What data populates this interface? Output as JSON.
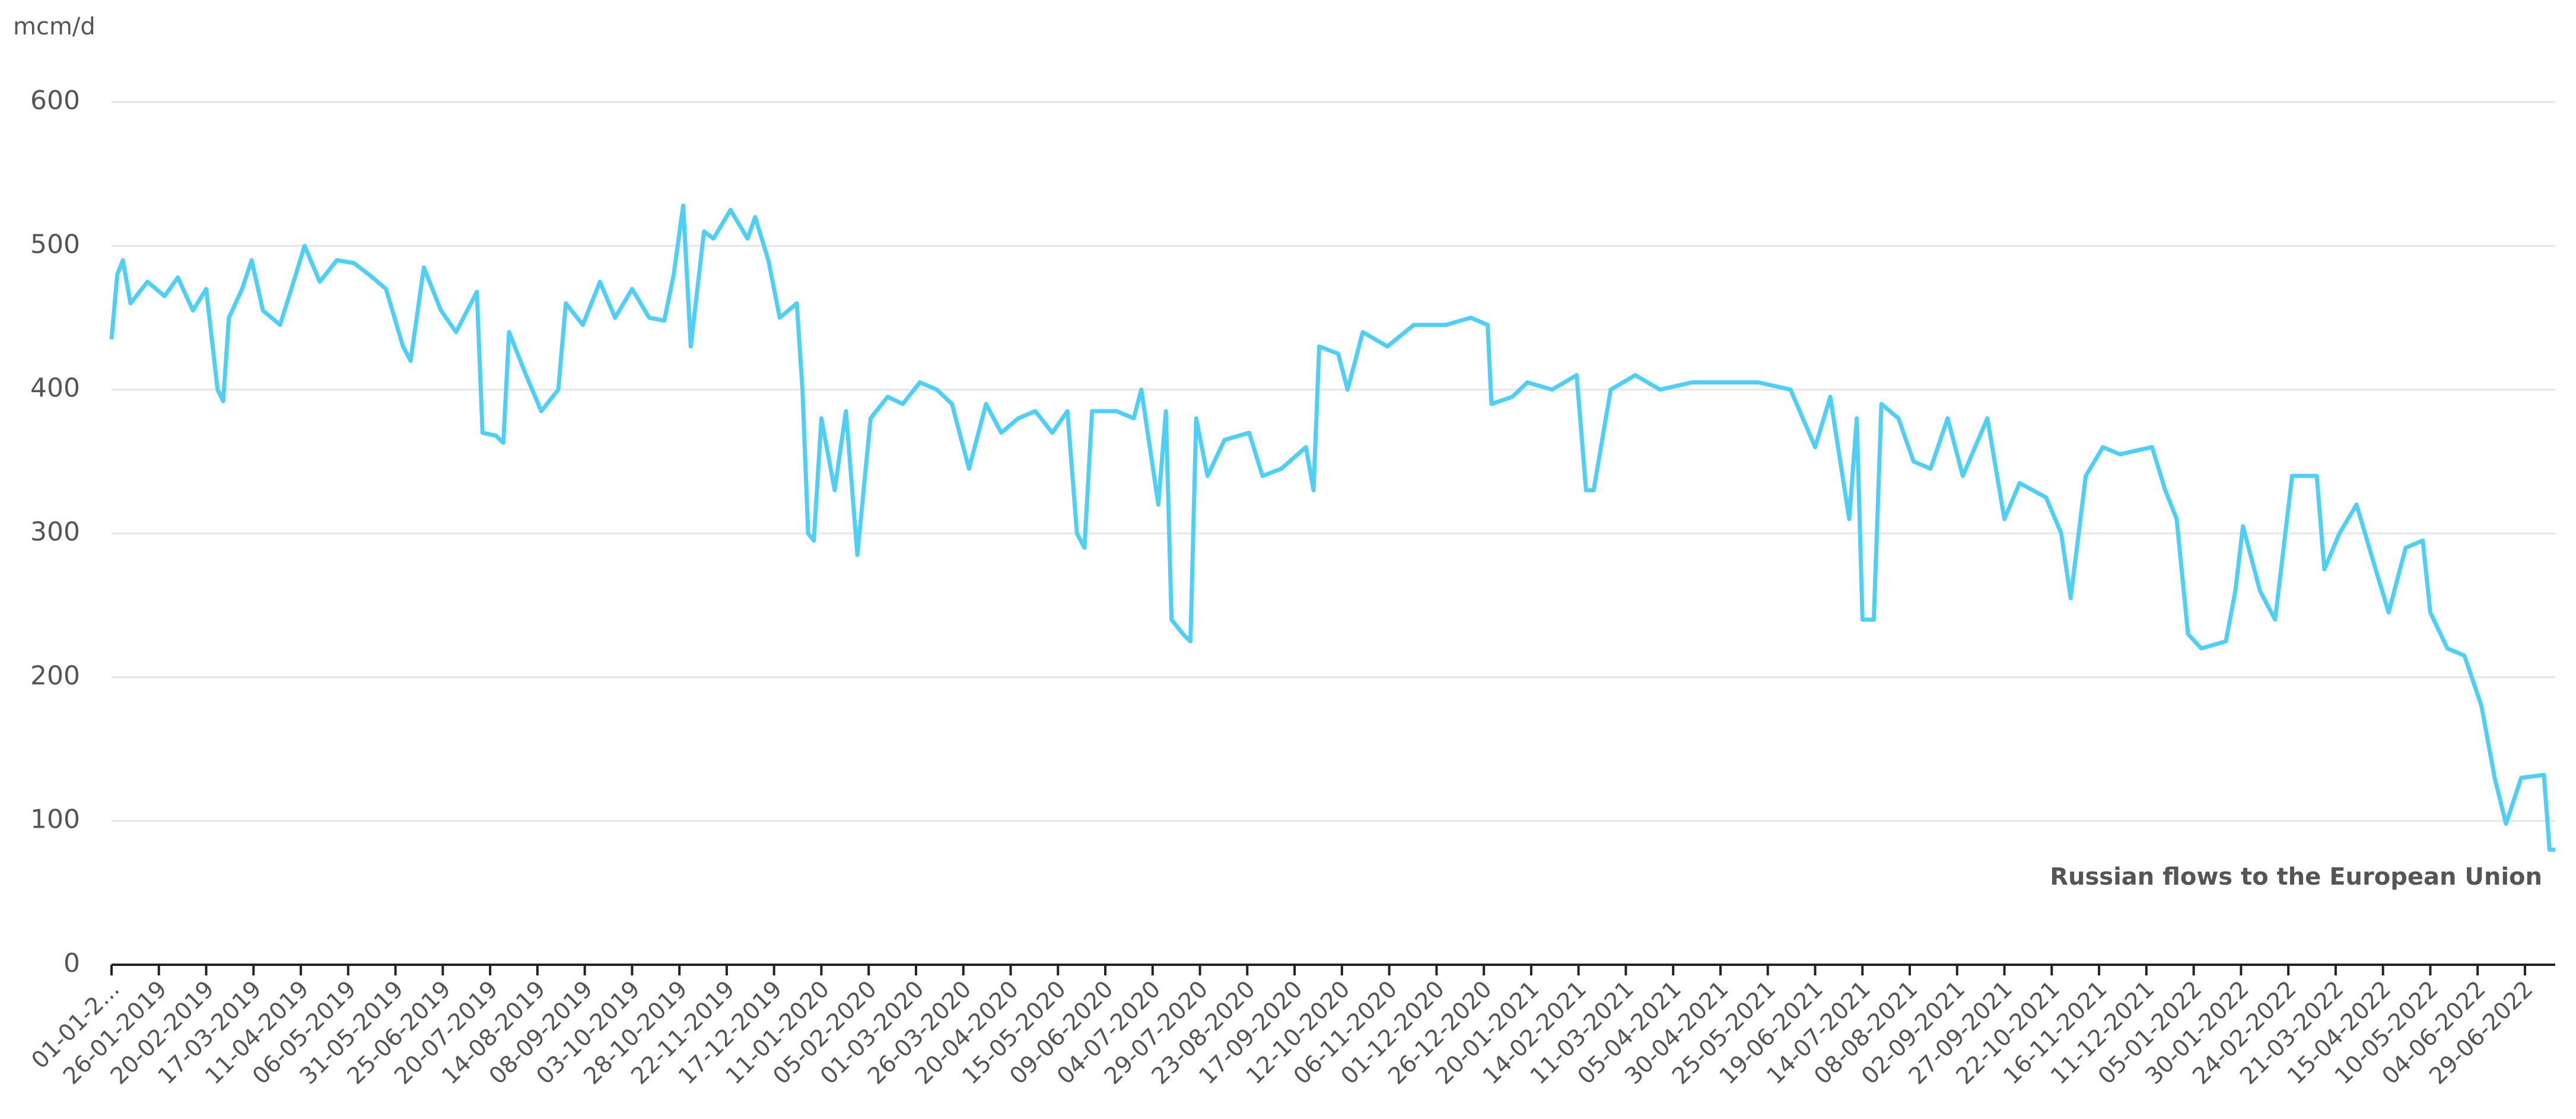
{
  "chart_data": {
    "type": "line",
    "y_label": "mcm/d",
    "x": [
      "01-01-2019",
      "04-01-2019",
      "07-01-2019",
      "11-01-2019",
      "20-01-2019",
      "29-01-2019",
      "05-02-2019",
      "13-02-2019",
      "20-02-2019",
      "26-02-2019",
      "01-03-2019",
      "04-03-2019",
      "11-03-2019",
      "16-03-2019",
      "22-03-2019",
      "31-03-2019",
      "06-04-2019",
      "13-04-2019",
      "21-04-2019",
      "30-04-2019",
      "09-05-2019",
      "17-05-2019",
      "26-05-2019",
      "04-06-2019",
      "08-06-2019",
      "15-06-2019",
      "24-06-2019",
      "02-07-2019",
      "13-07-2019",
      "16-07-2019",
      "23-07-2019",
      "27-07-2019",
      "30-07-2019",
      "08-08-2019",
      "16-08-2019",
      "25-08-2019",
      "29-08-2019",
      "07-09-2019",
      "16-09-2019",
      "24-09-2019",
      "03-10-2019",
      "12-10-2019",
      "20-10-2019",
      "25-10-2019",
      "30-10-2019",
      "03-11-2019",
      "10-11-2019",
      "15-11-2019",
      "24-11-2019",
      "03-12-2019",
      "07-12-2019",
      "14-12-2019",
      "20-12-2019",
      "29-12-2019",
      "01-01-2020",
      "04-01-2020",
      "07-01-2020",
      "11-01-2020",
      "18-01-2020",
      "24-01-2020",
      "30-01-2020",
      "06-02-2020",
      "15-02-2020",
      "23-02-2020",
      "03-03-2020",
      "12-03-2020",
      "20-03-2020",
      "29-03-2020",
      "07-04-2020",
      "15-04-2020",
      "24-04-2020",
      "03-05-2020",
      "12-05-2020",
      "20-05-2020",
      "25-05-2020",
      "29-05-2020",
      "02-06-2020",
      "15-06-2020",
      "24-06-2020",
      "28-06-2020",
      "07-07-2020",
      "11-07-2020",
      "14-07-2020",
      "20-07-2020",
      "24-07-2020",
      "27-07-2020",
      "02-08-2020",
      "11-08-2020",
      "24-08-2020",
      "31-08-2020",
      "10-09-2020",
      "23-09-2020",
      "27-09-2020",
      "30-09-2020",
      "10-10-2020",
      "15-10-2020",
      "23-10-2020",
      "05-11-2020",
      "19-11-2020",
      "06-12-2020",
      "19-12-2020",
      "28-12-2020",
      "30-12-2020",
      "10-01-2021",
      "18-01-2021",
      "31-01-2021",
      "13-02-2021",
      "18-02-2021",
      "22-02-2021",
      "03-03-2021",
      "16-03-2021",
      "29-03-2021",
      "15-04-2021",
      "02-05-2021",
      "20-05-2021",
      "06-06-2021",
      "19-06-2021",
      "27-06-2021",
      "07-07-2021",
      "11-07-2021",
      "14-07-2021",
      "20-07-2021",
      "24-07-2021",
      "02-08-2021",
      "10-08-2021",
      "19-08-2021",
      "28-08-2021",
      "05-09-2021",
      "18-09-2021",
      "27-09-2021",
      "05-10-2021",
      "19-10-2021",
      "27-10-2021",
      "01-11-2021",
      "09-11-2021",
      "18-11-2021",
      "27-11-2021",
      "14-12-2021",
      "21-12-2021",
      "27-12-2021",
      "02-01-2022",
      "09-01-2022",
      "22-01-2022",
      "27-01-2022",
      "31-01-2022",
      "09-02-2022",
      "17-02-2022",
      "26-02-2022",
      "11-03-2022",
      "15-03-2022",
      "23-03-2022",
      "01-04-2022",
      "10-04-2022",
      "18-04-2022",
      "27-04-2022",
      "06-05-2022",
      "10-05-2022",
      "19-05-2022",
      "28-05-2022",
      "06-06-2022",
      "13-06-2022",
      "19-06-2022",
      "27-06-2022",
      "09-07-2022",
      "12-07-2022",
      "15-07-2022"
    ],
    "series": [
      {
        "name": "Russian flows to the European Union",
        "color": "#4dd0f7",
        "values": [
          435,
          480,
          490,
          460,
          475,
          465,
          478,
          455,
          470,
          400,
          392,
          450,
          470,
          490,
          455,
          445,
          470,
          500,
          475,
          490,
          488,
          480,
          470,
          430,
          420,
          485,
          455,
          440,
          468,
          370,
          368,
          363,
          440,
          410,
          385,
          400,
          460,
          445,
          475,
          450,
          470,
          450,
          448,
          480,
          528,
          430,
          510,
          505,
          525,
          505,
          520,
          490,
          450,
          460,
          400,
          300,
          295,
          380,
          330,
          385,
          285,
          380,
          395,
          390,
          405,
          400,
          390,
          345,
          390,
          370,
          380,
          385,
          370,
          385,
          300,
          290,
          385,
          385,
          380,
          400,
          320,
          385,
          240,
          230,
          225,
          380,
          340,
          365,
          370,
          340,
          345,
          360,
          330,
          430,
          425,
          400,
          440,
          430,
          445,
          445,
          450,
          445,
          390,
          395,
          405,
          400,
          410,
          330,
          330,
          400,
          410,
          400,
          405,
          405,
          405,
          400,
          360,
          395,
          310,
          380,
          240,
          240,
          390,
          380,
          350,
          345,
          380,
          340,
          380,
          310,
          335,
          325,
          300,
          255,
          340,
          360,
          355,
          360,
          330,
          310,
          230,
          220,
          225,
          260,
          305,
          260,
          240,
          340,
          340,
          275,
          300,
          320,
          280,
          245,
          290,
          295,
          245,
          220,
          215,
          180,
          130,
          98,
          130,
          132,
          80,
          80
        ]
      }
    ],
    "xlim": [
      "01-01-2019",
      "15-07-2022"
    ],
    "xticks": [
      {
        "value": "01-01-2019",
        "label": "01-01-2..."
      },
      "26-01-2019",
      "20-02-2019",
      "17-03-2019",
      "11-04-2019",
      "06-05-2019",
      "31-05-2019",
      "25-06-2019",
      "20-07-2019",
      "14-08-2019",
      "08-09-2019",
      "03-10-2019",
      "28-10-2019",
      "22-11-2019",
      "17-12-2019",
      "11-01-2020",
      "05-02-2020",
      "01-03-2020",
      "26-03-2020",
      "20-04-2020",
      "15-05-2020",
      "09-06-2020",
      "04-07-2020",
      "29-07-2020",
      "23-08-2020",
      "17-09-2020",
      "12-10-2020",
      "06-11-2020",
      "01-12-2020",
      "26-12-2020",
      "20-01-2021",
      "14-02-2021",
      "11-03-2021",
      "05-04-2021",
      "30-04-2021",
      "25-05-2021",
      "19-06-2021",
      "14-07-2021",
      "08-08-2021",
      "02-09-2021",
      "27-09-2021",
      "22-10-2021",
      "16-11-2021",
      "11-12-2021",
      "05-01-2022",
      "30-01-2022",
      "24-02-2022",
      "21-03-2022",
      "15-04-2022",
      "10-05-2022",
      "04-06-2022",
      "29-06-2022"
    ],
    "ylim": [
      0,
      600
    ],
    "yticks": [
      0,
      100,
      200,
      300,
      400,
      500,
      600
    ],
    "grid": true
  }
}
